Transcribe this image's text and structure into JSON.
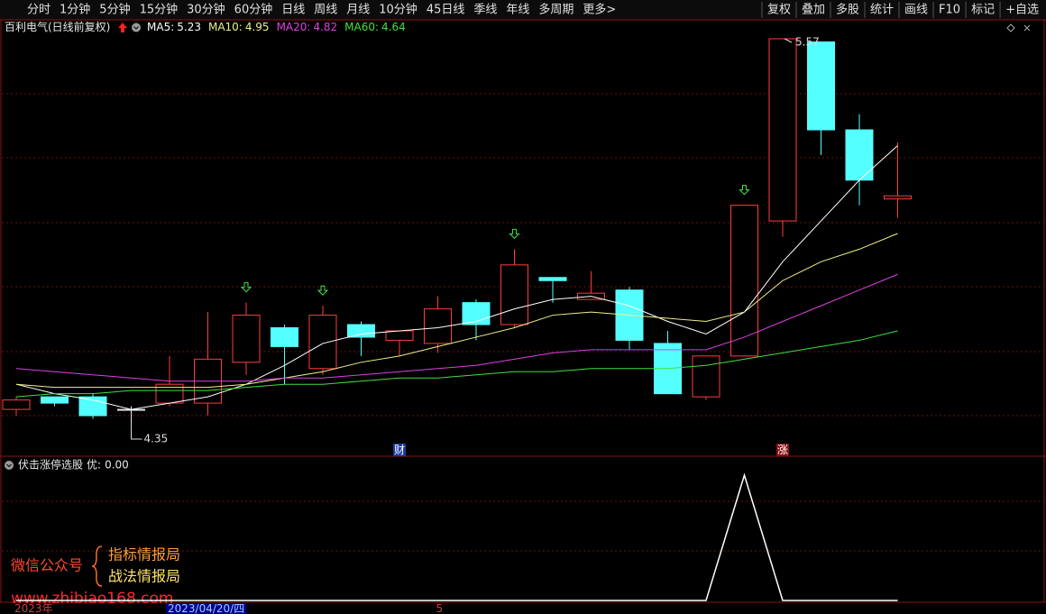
{
  "toolbar": {
    "periods": [
      "分时",
      "1分钟",
      "5分钟",
      "15分钟",
      "30分钟",
      "60分钟",
      "日线",
      "周线",
      "月线",
      "10分钟",
      "45日线",
      "季线",
      "年线",
      "多周期",
      "更多>"
    ],
    "active": 6,
    "buttons": [
      "复权",
      "叠加",
      "多股",
      "统计",
      "画线",
      "F10",
      "标记",
      "+自选"
    ]
  },
  "chart_data": {
    "type": "candlestick",
    "title": "百利电气(日线前复权)",
    "up_color": "#ff3c3c",
    "down_color": "#54ffff",
    "grid": true,
    "categories": [
      "2023年",
      null,
      null,
      null,
      "2023/04/20/四",
      null,
      null,
      null,
      null,
      null,
      null,
      "5",
      null,
      null,
      null,
      null,
      null,
      null,
      null,
      null,
      null,
      null,
      null,
      null
    ],
    "events": [
      null,
      null,
      null,
      null,
      null,
      null,
      null,
      null,
      null,
      null,
      "财",
      null,
      null,
      null,
      null,
      null,
      null,
      null,
      null,
      null,
      "涨",
      null,
      null,
      null
    ],
    "signals": [
      false,
      false,
      false,
      false,
      false,
      false,
      true,
      false,
      true,
      false,
      false,
      false,
      false,
      true,
      false,
      false,
      false,
      false,
      false,
      true,
      false,
      false,
      false,
      false
    ],
    "candles": [
      {
        "open": 4.39,
        "high": 4.43,
        "low": 4.37,
        "close": 4.42
      },
      {
        "open": 4.43,
        "high": 4.43,
        "low": 4.4,
        "close": 4.41
      },
      {
        "open": 4.43,
        "high": 4.44,
        "low": 4.36,
        "close": 4.37
      },
      {
        "open": 4.39,
        "high": 4.4,
        "low": 4.35,
        "close": 4.39
      },
      {
        "open": 4.41,
        "high": 4.56,
        "low": 4.4,
        "close": 4.47
      },
      {
        "open": 4.41,
        "high": 4.7,
        "low": 4.37,
        "close": 4.55
      },
      {
        "open": 4.54,
        "high": 4.73,
        "low": 4.5,
        "close": 4.69
      },
      {
        "open": 4.65,
        "high": 4.66,
        "low": 4.47,
        "close": 4.59
      },
      {
        "open": 4.52,
        "high": 4.72,
        "low": 4.5,
        "close": 4.69
      },
      {
        "open": 4.66,
        "high": 4.67,
        "low": 4.56,
        "close": 4.62
      },
      {
        "open": 4.61,
        "high": 4.64,
        "low": 4.56,
        "close": 4.64
      },
      {
        "open": 4.6,
        "high": 4.75,
        "low": 4.57,
        "close": 4.71
      },
      {
        "open": 4.73,
        "high": 4.74,
        "low": 4.61,
        "close": 4.66
      },
      {
        "open": 4.66,
        "high": 4.9,
        "low": 4.65,
        "close": 4.85
      },
      {
        "open": 4.81,
        "high": 4.81,
        "low": 4.73,
        "close": 4.8
      },
      {
        "open": 4.74,
        "high": 4.83,
        "low": 4.74,
        "close": 4.76
      },
      {
        "open": 4.77,
        "high": 4.78,
        "low": 4.58,
        "close": 4.61
      },
      {
        "open": 4.6,
        "high": 4.64,
        "low": 4.44,
        "close": 4.44
      },
      {
        "open": 4.43,
        "high": 4.56,
        "low": 4.42,
        "close": 4.56
      },
      {
        "open": 4.56,
        "high": 5.04,
        "low": 4.56,
        "close": 5.04
      },
      {
        "open": 4.99,
        "high": 5.57,
        "low": 4.94,
        "close": 5.57
      },
      {
        "open": 5.56,
        "high": 5.56,
        "low": 5.2,
        "close": 5.28
      },
      {
        "open": 5.28,
        "high": 5.33,
        "low": 5.04,
        "close": 5.12
      },
      {
        "open": 5.06,
        "high": 5.24,
        "low": 5.0,
        "close": 5.07
      }
    ],
    "series": [
      {
        "name": "MA5:",
        "color": "#ffffff",
        "values": [
          4.47,
          4.44,
          4.42,
          4.39,
          4.41,
          4.43,
          4.47,
          4.53,
          4.6,
          4.63,
          4.64,
          4.65,
          4.67,
          4.71,
          4.74,
          4.75,
          4.72,
          4.67,
          4.63,
          4.7,
          4.86,
          4.99,
          5.12,
          5.23
        ]
      },
      {
        "name": "MA10:",
        "color": "#f0f08c",
        "values": [
          4.47,
          4.46,
          4.46,
          4.46,
          4.46,
          4.46,
          4.47,
          4.49,
          4.51,
          4.54,
          4.56,
          4.59,
          4.62,
          4.65,
          4.69,
          4.7,
          4.69,
          4.68,
          4.67,
          4.7,
          4.8,
          4.86,
          4.9,
          4.95
        ]
      },
      {
        "name": "MA20:",
        "color": "#e040e0",
        "values": [
          4.52,
          4.51,
          4.5,
          4.49,
          4.48,
          4.48,
          4.48,
          4.49,
          4.49,
          4.5,
          4.51,
          4.52,
          4.53,
          4.55,
          4.57,
          4.58,
          4.58,
          4.58,
          4.58,
          4.62,
          4.67,
          4.72,
          4.77,
          4.82
        ]
      },
      {
        "name": "MA60:",
        "color": "#40e040",
        "values": [
          4.43,
          4.44,
          4.44,
          4.45,
          4.45,
          4.45,
          4.46,
          4.47,
          4.47,
          4.48,
          4.49,
          4.49,
          4.5,
          4.51,
          4.51,
          4.52,
          4.52,
          4.52,
          4.53,
          4.55,
          4.57,
          4.59,
          4.61,
          4.64
        ]
      }
    ]
  },
  "indicator": {
    "type": "line",
    "title": "伏击涨停选股",
    "label": "优:",
    "color": "#ffffff",
    "values": [
      0,
      0,
      0,
      0,
      0,
      0,
      0,
      0,
      0,
      0,
      0,
      0,
      0,
      0,
      0,
      0,
      0,
      0,
      0,
      1,
      0,
      0,
      0,
      0
    ],
    "value_label": "0.00"
  },
  "watermark": {
    "account": "微信公众号",
    "names": [
      "指标情报局",
      "战法情报局"
    ],
    "url": "www.zhibiao168.com"
  }
}
